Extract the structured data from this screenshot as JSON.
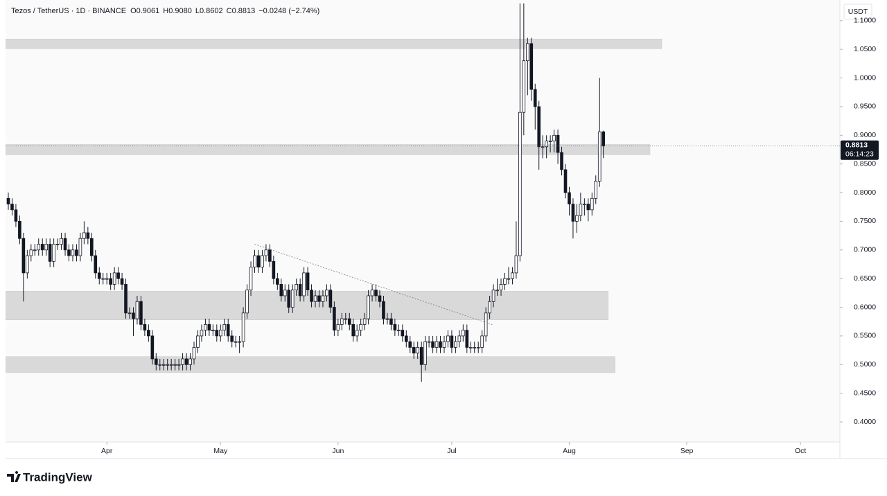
{
  "chart_data": {
    "type": "candlestick",
    "legend": {
      "symbol": "Tezos / TetherUS · 1D · BINANCE",
      "open": "O0.9061",
      "high": "H0.9080",
      "low": "L0.8602",
      "close": "C0.8813",
      "change": "−0.0248 (−2.74%)"
    },
    "currency": "USDT",
    "last_price": {
      "value": 0.8813,
      "label": "0.8813",
      "countdown": "06:14:23"
    },
    "brand": "TradingView",
    "up_color": "#ffffff",
    "down_color": "#131722",
    "outline_color": "#131722",
    "zone_color": "#d6d6d6",
    "xlim": [
      -0.73,
      219.4
    ],
    "xticks": [
      {
        "value": 26,
        "label": "Apr"
      },
      {
        "value": 56,
        "label": "May"
      },
      {
        "value": 87,
        "label": "Jun"
      },
      {
        "value": 117,
        "label": "Jul"
      },
      {
        "value": 148,
        "label": "Aug"
      },
      {
        "value": 179,
        "label": "Sep"
      },
      {
        "value": 209,
        "label": "Oct"
      }
    ],
    "ylim": [
      0.365,
      1.136
    ],
    "yticks": [
      {
        "value": 0.4,
        "label": "0.4000"
      },
      {
        "value": 0.45,
        "label": "0.4500"
      },
      {
        "value": 0.5,
        "label": "0.5000"
      },
      {
        "value": 0.55,
        "label": "0.5500"
      },
      {
        "value": 0.6,
        "label": "0.6000"
      },
      {
        "value": 0.65,
        "label": "0.6500"
      },
      {
        "value": 0.7,
        "label": "0.7000"
      },
      {
        "value": 0.75,
        "label": "0.7500"
      },
      {
        "value": 0.8,
        "label": "0.8000"
      },
      {
        "value": 0.85,
        "label": "0.8500"
      },
      {
        "value": 0.9,
        "label": "0.9000"
      },
      {
        "value": 0.95,
        "label": "0.9500"
      },
      {
        "value": 1.0,
        "label": "1.0000"
      },
      {
        "value": 1.05,
        "label": "1.0500"
      },
      {
        "value": 1.1,
        "label": "1.1000"
      }
    ],
    "zones": [
      {
        "low": 1.051,
        "high": 1.068,
        "end": 172.4
      },
      {
        "low": 0.866,
        "high": 0.884,
        "end": 169.3
      },
      {
        "low": 0.578,
        "high": 0.628,
        "end": 158.3
      },
      {
        "low": 0.486,
        "high": 0.514,
        "end": 160.1
      }
    ],
    "trendline": {
      "x": [
        65,
        128
      ],
      "y": [
        0.71,
        0.569
      ]
    },
    "open": [
      0.79,
      0.78,
      0.77,
      0.75,
      0.72,
      0.66,
      0.69,
      0.7,
      0.7,
      0.71,
      0.7,
      0.71,
      0.68,
      0.71,
      0.71,
      0.72,
      0.7,
      0.69,
      0.7,
      0.69,
      0.72,
      0.73,
      0.72,
      0.69,
      0.66,
      0.65,
      0.65,
      0.65,
      0.64,
      0.66,
      0.65,
      0.64,
      0.59,
      0.59,
      0.58,
      0.61,
      0.57,
      0.56,
      0.55,
      0.51,
      0.5,
      0.5,
      0.5,
      0.5,
      0.5,
      0.5,
      0.5,
      0.51,
      0.5,
      0.51,
      0.53,
      0.55,
      0.56,
      0.57,
      0.56,
      0.56,
      0.55,
      0.56,
      0.57,
      0.55,
      0.54,
      0.54,
      0.54,
      0.59,
      0.63,
      0.67,
      0.69,
      0.67,
      0.69,
      0.7,
      0.68,
      0.65,
      0.64,
      0.62,
      0.63,
      0.6,
      0.63,
      0.64,
      0.62,
      0.66,
      0.63,
      0.61,
      0.62,
      0.61,
      0.62,
      0.63,
      0.6,
      0.56,
      0.57,
      0.58,
      0.58,
      0.57,
      0.55,
      0.56,
      0.57,
      0.58,
      0.62,
      0.63,
      0.62,
      0.61,
      0.58,
      0.58,
      0.57,
      0.56,
      0.56,
      0.55,
      0.54,
      0.53,
      0.52,
      0.53,
      0.5,
      0.54,
      0.54,
      0.53,
      0.54,
      0.53,
      0.54,
      0.55,
      0.53,
      0.54,
      0.55,
      0.56,
      0.53,
      0.53,
      0.53,
      0.53,
      0.55,
      0.59,
      0.61,
      0.63,
      0.63,
      0.64,
      0.65,
      0.65,
      0.66,
      0.69,
      0.94,
      1.03,
      1.06,
      0.98,
      0.95,
      0.88,
      0.88,
      0.89,
      0.89,
      0.9,
      0.87,
      0.84,
      0.8,
      0.78,
      0.75,
      0.76,
      0.78,
      0.78,
      0.77,
      0.79,
      0.82,
      0.9061
    ],
    "high": [
      0.8,
      0.79,
      0.78,
      0.76,
      0.73,
      0.7,
      0.71,
      0.71,
      0.72,
      0.72,
      0.72,
      0.72,
      0.72,
      0.72,
      0.73,
      0.73,
      0.71,
      0.71,
      0.71,
      0.73,
      0.75,
      0.74,
      0.73,
      0.7,
      0.67,
      0.66,
      0.66,
      0.66,
      0.67,
      0.67,
      0.66,
      0.65,
      0.6,
      0.6,
      0.62,
      0.62,
      0.58,
      0.57,
      0.56,
      0.52,
      0.51,
      0.51,
      0.51,
      0.51,
      0.51,
      0.51,
      0.52,
      0.52,
      0.52,
      0.54,
      0.56,
      0.57,
      0.58,
      0.58,
      0.57,
      0.57,
      0.57,
      0.58,
      0.58,
      0.56,
      0.55,
      0.55,
      0.6,
      0.64,
      0.68,
      0.7,
      0.7,
      0.7,
      0.71,
      0.71,
      0.69,
      0.66,
      0.65,
      0.64,
      0.64,
      0.64,
      0.65,
      0.65,
      0.67,
      0.67,
      0.64,
      0.63,
      0.63,
      0.63,
      0.64,
      0.64,
      0.61,
      0.58,
      0.59,
      0.59,
      0.59,
      0.58,
      0.57,
      0.58,
      0.59,
      0.63,
      0.64,
      0.64,
      0.63,
      0.62,
      0.59,
      0.59,
      0.58,
      0.57,
      0.57,
      0.56,
      0.55,
      0.54,
      0.54,
      0.54,
      0.55,
      0.55,
      0.55,
      0.55,
      0.55,
      0.55,
      0.56,
      0.56,
      0.55,
      0.56,
      0.57,
      0.57,
      0.54,
      0.54,
      0.54,
      0.56,
      0.6,
      0.62,
      0.64,
      0.65,
      0.65,
      0.66,
      0.67,
      0.67,
      0.75,
      1.13,
      1.13,
      1.07,
      1.07,
      0.99,
      0.96,
      0.9,
      0.9,
      0.9,
      0.91,
      0.91,
      0.88,
      0.85,
      0.81,
      0.79,
      0.78,
      0.8,
      0.79,
      0.79,
      0.8,
      0.83,
      1.0,
      0.908
    ],
    "low": [
      0.77,
      0.76,
      0.74,
      0.71,
      0.61,
      0.65,
      0.68,
      0.69,
      0.69,
      0.69,
      0.69,
      0.67,
      0.67,
      0.7,
      0.7,
      0.69,
      0.68,
      0.68,
      0.68,
      0.68,
      0.71,
      0.71,
      0.68,
      0.65,
      0.64,
      0.64,
      0.64,
      0.63,
      0.63,
      0.64,
      0.63,
      0.58,
      0.58,
      0.55,
      0.57,
      0.56,
      0.55,
      0.54,
      0.5,
      0.49,
      0.49,
      0.49,
      0.49,
      0.49,
      0.49,
      0.49,
      0.49,
      0.49,
      0.49,
      0.5,
      0.52,
      0.54,
      0.55,
      0.55,
      0.55,
      0.54,
      0.54,
      0.55,
      0.54,
      0.53,
      0.53,
      0.52,
      0.53,
      0.58,
      0.62,
      0.66,
      0.66,
      0.66,
      0.68,
      0.67,
      0.64,
      0.63,
      0.61,
      0.61,
      0.59,
      0.59,
      0.62,
      0.61,
      0.61,
      0.62,
      0.6,
      0.6,
      0.6,
      0.6,
      0.61,
      0.59,
      0.55,
      0.55,
      0.56,
      0.57,
      0.56,
      0.54,
      0.54,
      0.55,
      0.56,
      0.57,
      0.61,
      0.61,
      0.6,
      0.57,
      0.57,
      0.56,
      0.55,
      0.55,
      0.54,
      0.53,
      0.52,
      0.51,
      0.51,
      0.47,
      0.49,
      0.53,
      0.52,
      0.52,
      0.52,
      0.52,
      0.53,
      0.52,
      0.52,
      0.53,
      0.54,
      0.52,
      0.52,
      0.52,
      0.52,
      0.52,
      0.54,
      0.58,
      0.6,
      0.62,
      0.62,
      0.63,
      0.64,
      0.64,
      0.65,
      0.68,
      0.9,
      0.97,
      0.96,
      0.91,
      0.84,
      0.86,
      0.86,
      0.87,
      0.87,
      0.85,
      0.83,
      0.79,
      0.76,
      0.72,
      0.73,
      0.75,
      0.76,
      0.75,
      0.76,
      0.78,
      0.81,
      0.8602
    ],
    "close": [
      0.78,
      0.77,
      0.75,
      0.72,
      0.66,
      0.69,
      0.7,
      0.7,
      0.71,
      0.7,
      0.71,
      0.68,
      0.71,
      0.71,
      0.72,
      0.7,
      0.69,
      0.7,
      0.69,
      0.72,
      0.73,
      0.72,
      0.69,
      0.66,
      0.65,
      0.65,
      0.65,
      0.64,
      0.66,
      0.65,
      0.64,
      0.59,
      0.59,
      0.58,
      0.61,
      0.57,
      0.56,
      0.55,
      0.51,
      0.5,
      0.5,
      0.5,
      0.5,
      0.5,
      0.5,
      0.5,
      0.51,
      0.5,
      0.51,
      0.53,
      0.55,
      0.56,
      0.57,
      0.56,
      0.56,
      0.55,
      0.56,
      0.57,
      0.55,
      0.54,
      0.54,
      0.54,
      0.59,
      0.63,
      0.67,
      0.69,
      0.67,
      0.69,
      0.7,
      0.68,
      0.65,
      0.64,
      0.62,
      0.63,
      0.6,
      0.63,
      0.64,
      0.62,
      0.66,
      0.63,
      0.61,
      0.62,
      0.61,
      0.62,
      0.63,
      0.6,
      0.56,
      0.57,
      0.58,
      0.58,
      0.57,
      0.55,
      0.56,
      0.57,
      0.58,
      0.62,
      0.63,
      0.62,
      0.61,
      0.58,
      0.58,
      0.57,
      0.56,
      0.56,
      0.55,
      0.54,
      0.53,
      0.52,
      0.53,
      0.5,
      0.54,
      0.54,
      0.53,
      0.54,
      0.53,
      0.54,
      0.55,
      0.53,
      0.54,
      0.55,
      0.56,
      0.53,
      0.53,
      0.53,
      0.53,
      0.55,
      0.59,
      0.61,
      0.63,
      0.63,
      0.64,
      0.65,
      0.65,
      0.66,
      0.69,
      0.94,
      1.03,
      1.06,
      0.98,
      0.95,
      0.88,
      0.88,
      0.89,
      0.89,
      0.9,
      0.87,
      0.84,
      0.8,
      0.78,
      0.75,
      0.76,
      0.78,
      0.78,
      0.77,
      0.79,
      0.82,
      0.9061,
      0.8813
    ]
  }
}
